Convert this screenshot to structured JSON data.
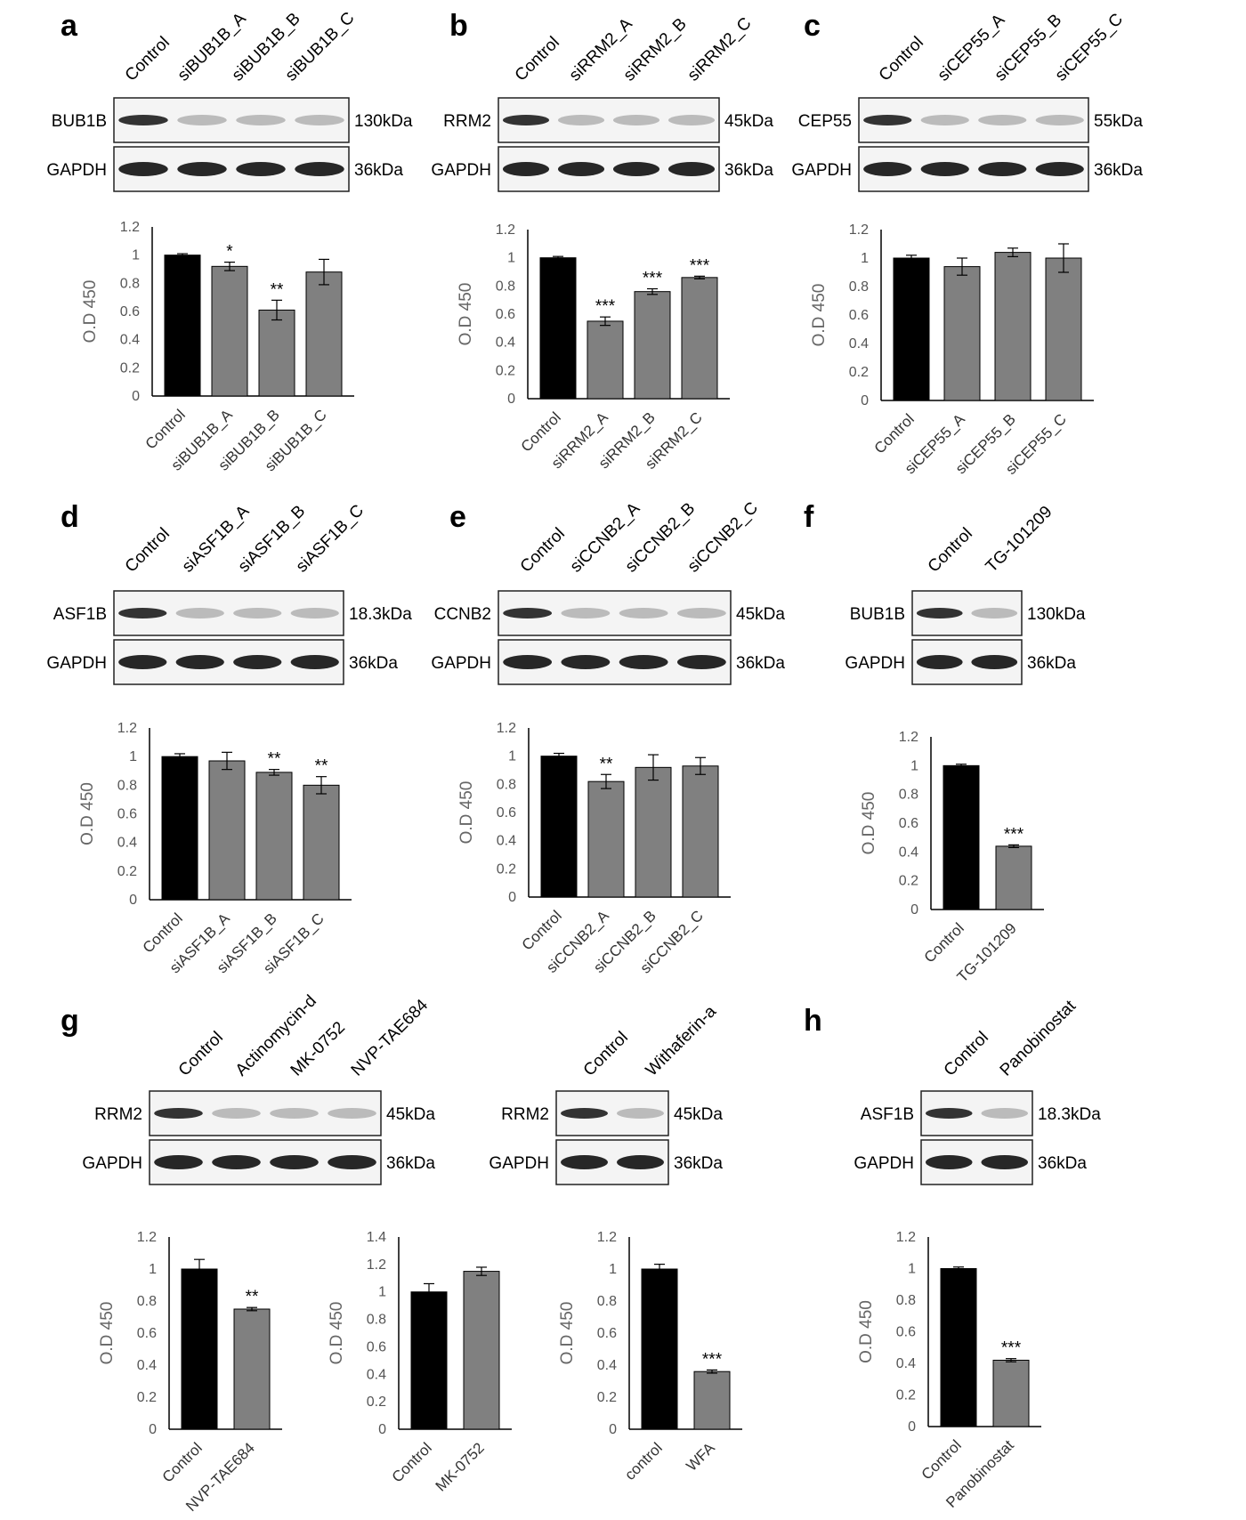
{
  "panels": [
    {
      "letter": "a",
      "lanes": [
        "Control",
        "siBUB1B_A",
        "siBUB1B_B",
        "siBUB1B_C"
      ],
      "blots": [
        {
          "protein": "BUB1B",
          "kda": "130kDa"
        },
        {
          "protein": "GAPDH",
          "kda": "36kDa"
        }
      ]
    },
    {
      "letter": "b",
      "lanes": [
        "Control",
        "siRRM2_A",
        "siRRM2_B",
        "siRRM2_C"
      ],
      "blots": [
        {
          "protein": "RRM2",
          "kda": "45kDa"
        },
        {
          "protein": "GAPDH",
          "kda": "36kDa"
        }
      ]
    },
    {
      "letter": "c",
      "lanes": [
        "Control",
        "siCEP55_A",
        "siCEP55_B",
        "siCEP55_C"
      ],
      "blots": [
        {
          "protein": "CEP55",
          "kda": "55kDa"
        },
        {
          "protein": "GAPDH",
          "kda": "36kDa"
        }
      ]
    },
    {
      "letter": "d",
      "lanes": [
        "Control",
        "siASF1B_A",
        "siASF1B_B",
        "siASF1B_C"
      ],
      "blots": [
        {
          "protein": "ASF1B",
          "kda": "18.3kDa"
        },
        {
          "protein": "GAPDH",
          "kda": "36kDa"
        }
      ]
    },
    {
      "letter": "e",
      "lanes": [
        "Control",
        "siCCNB2_A",
        "siCCNB2_B",
        "siCCNB2_C"
      ],
      "blots": [
        {
          "protein": "CCNB2",
          "kda": "45kDa"
        },
        {
          "protein": "GAPDH",
          "kda": "36kDa"
        }
      ]
    },
    {
      "letter": "f",
      "lanes": [
        "Control",
        "TG-101209"
      ],
      "blots": [
        {
          "protein": "BUB1B",
          "kda": "130kDa"
        },
        {
          "protein": "GAPDH",
          "kda": "36kDa"
        }
      ]
    },
    {
      "letter": "g",
      "lanes": [
        "Control",
        "Actinomycin-d",
        "MK-0752",
        "NVP-TAE684"
      ],
      "blots": [
        {
          "protein": "RRM2",
          "kda": "45kDa"
        },
        {
          "protein": "GAPDH",
          "kda": "36kDa"
        }
      ]
    },
    {
      "letter": "",
      "lanes": [
        "Control",
        "Withaferin-a"
      ],
      "blots": [
        {
          "protein": "RRM2",
          "kda": "45kDa"
        },
        {
          "protein": "GAPDH",
          "kda": "36kDa"
        }
      ]
    },
    {
      "letter": "h",
      "lanes": [
        "Control",
        "Panobinostat"
      ],
      "blots": [
        {
          "protein": "ASF1B",
          "kda": "18.3kDa"
        },
        {
          "protein": "GAPDH",
          "kda": "36kDa"
        }
      ]
    }
  ],
  "chart_data": [
    {
      "type": "bar",
      "panel": "a",
      "ylabel": "O.D 450",
      "ylim": [
        0,
        1.2
      ],
      "yticks": [
        "0",
        "0.2",
        "0.4",
        "0.6",
        "0.8",
        "1",
        "1.2"
      ],
      "categories": [
        "Control",
        "siBUB1B_A",
        "siBUB1B_B",
        "siBUB1B_C"
      ],
      "values": [
        1.0,
        0.92,
        0.61,
        0.88
      ],
      "errors": [
        0.01,
        0.03,
        0.07,
        0.09
      ],
      "significance": [
        "",
        "*",
        "**",
        ""
      ],
      "colors": [
        "#000000",
        "#808080",
        "#808080",
        "#808080"
      ]
    },
    {
      "type": "bar",
      "panel": "b",
      "ylabel": "O.D 450",
      "ylim": [
        0,
        1.2
      ],
      "yticks": [
        "0",
        "0.2",
        "0.4",
        "0.6",
        "0.8",
        "1",
        "1.2"
      ],
      "categories": [
        "Control",
        "siRRM2_A",
        "siRRM2_B",
        "siRRM2_C"
      ],
      "values": [
        1.0,
        0.55,
        0.76,
        0.86
      ],
      "errors": [
        0.005,
        0.03,
        0.02,
        0.005
      ],
      "significance": [
        "",
        "***",
        "***",
        "***"
      ],
      "colors": [
        "#000000",
        "#808080",
        "#808080",
        "#808080"
      ]
    },
    {
      "type": "bar",
      "panel": "c",
      "ylabel": "O.D 450",
      "ylim": [
        0,
        1.2
      ],
      "yticks": [
        "0",
        "0.2",
        "0.4",
        "0.6",
        "0.8",
        "1",
        "1.2"
      ],
      "categories": [
        "Control",
        "siCEP55_A",
        "siCEP55_B",
        "siCEP55_C"
      ],
      "values": [
        1.0,
        0.94,
        1.04,
        1.0
      ],
      "errors": [
        0.02,
        0.06,
        0.03,
        0.1
      ],
      "significance": [
        "",
        "",
        "",
        ""
      ],
      "colors": [
        "#000000",
        "#808080",
        "#808080",
        "#808080"
      ]
    },
    {
      "type": "bar",
      "panel": "d",
      "ylabel": "O.D 450",
      "ylim": [
        0,
        1.2
      ],
      "yticks": [
        "0",
        "0.2",
        "0.4",
        "0.6",
        "0.8",
        "1",
        "1.2"
      ],
      "categories": [
        "Control",
        "siASF1B_A",
        "siASF1B_B",
        "siASF1B_C"
      ],
      "values": [
        1.0,
        0.97,
        0.89,
        0.8
      ],
      "errors": [
        0.02,
        0.06,
        0.02,
        0.06
      ],
      "significance": [
        "",
        "",
        "**",
        "**"
      ],
      "colors": [
        "#000000",
        "#808080",
        "#808080",
        "#808080"
      ]
    },
    {
      "type": "bar",
      "panel": "e",
      "ylabel": "O.D 450",
      "ylim": [
        0,
        1.2
      ],
      "yticks": [
        "0",
        "0.2",
        "0.4",
        "0.6",
        "0.8",
        "1",
        "1.2"
      ],
      "categories": [
        "Control",
        "siCCNB2_A",
        "siCCNB2_B",
        "siCCNB2_C"
      ],
      "values": [
        1.0,
        0.82,
        0.92,
        0.93
      ],
      "errors": [
        0.02,
        0.05,
        0.09,
        0.06
      ],
      "significance": [
        "",
        "**",
        "",
        ""
      ],
      "colors": [
        "#000000",
        "#808080",
        "#808080",
        "#808080"
      ]
    },
    {
      "type": "bar",
      "panel": "f",
      "ylabel": "O.D 450",
      "ylim": [
        0,
        1.2
      ],
      "yticks": [
        "0",
        "0.2",
        "0.4",
        "0.6",
        "0.8",
        "1",
        "1.2"
      ],
      "categories": [
        "Control",
        "TG-101209"
      ],
      "values": [
        1.0,
        0.44
      ],
      "errors": [
        0.01,
        0.005
      ],
      "significance": [
        "",
        "***"
      ],
      "colors": [
        "#000000",
        "#808080"
      ]
    },
    {
      "type": "bar",
      "panel": "g1",
      "ylabel": "O.D 450",
      "ylim": [
        0,
        1.2
      ],
      "yticks": [
        "0",
        "0.2",
        "0.4",
        "0.6",
        "0.8",
        "1",
        "1.2"
      ],
      "categories": [
        "Control",
        "NVP-TAE684"
      ],
      "values": [
        1.0,
        0.75
      ],
      "errors": [
        0.06,
        0.01
      ],
      "significance": [
        "",
        "**"
      ],
      "colors": [
        "#000000",
        "#808080"
      ]
    },
    {
      "type": "bar",
      "panel": "g2",
      "ylabel": "O.D 450",
      "ylim": [
        0,
        1.4
      ],
      "yticks": [
        "0",
        "0.2",
        "0.4",
        "0.6",
        "0.8",
        "1",
        "1.2",
        "1.4"
      ],
      "categories": [
        "Control",
        "MK-0752"
      ],
      "values": [
        1.0,
        1.15
      ],
      "errors": [
        0.06,
        0.03
      ],
      "significance": [
        "",
        ""
      ],
      "colors": [
        "#000000",
        "#808080"
      ]
    },
    {
      "type": "bar",
      "panel": "g3",
      "ylabel": "O.D 450",
      "ylim": [
        0,
        1.2
      ],
      "yticks": [
        "0",
        "0.2",
        "0.4",
        "0.6",
        "0.8",
        "1",
        "1.2"
      ],
      "categories": [
        "control",
        "WFA"
      ],
      "values": [
        1.0,
        0.36
      ],
      "errors": [
        0.03,
        0.01
      ],
      "significance": [
        "",
        "***"
      ],
      "colors": [
        "#000000",
        "#808080"
      ]
    },
    {
      "type": "bar",
      "panel": "h",
      "ylabel": "O.D 450",
      "ylim": [
        0,
        1.2
      ],
      "yticks": [
        "0",
        "0.2",
        "0.4",
        "0.6",
        "0.8",
        "1",
        "1.2"
      ],
      "categories": [
        "Control",
        "Panobinostat"
      ],
      "values": [
        1.0,
        0.42
      ],
      "errors": [
        0.01,
        0.01
      ],
      "significance": [
        "",
        "***"
      ],
      "colors": [
        "#000000",
        "#808080"
      ]
    }
  ]
}
